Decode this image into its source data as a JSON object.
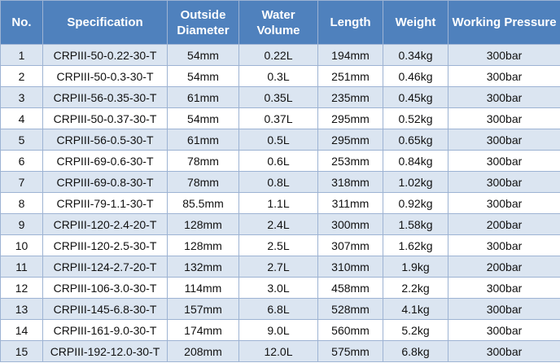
{
  "table": {
    "columns": [
      "No.",
      "Specification",
      "Outside Diameter",
      "Water Volume",
      "Length",
      "Weight",
      "Working Pressure"
    ],
    "rows": [
      [
        "1",
        "CRPIII-50-0.22-30-T",
        "54mm",
        "0.22L",
        "194mm",
        "0.34kg",
        "300bar"
      ],
      [
        "2",
        "CRPIII-50-0.3-30-T",
        "54mm",
        "0.3L",
        "251mm",
        "0.46kg",
        "300bar"
      ],
      [
        "3",
        "CRPIII-56-0.35-30-T",
        "61mm",
        "0.35L",
        "235mm",
        "0.45kg",
        "300bar"
      ],
      [
        "4",
        "CRPIII-50-0.37-30-T",
        "54mm",
        "0.37L",
        "295mm",
        "0.52kg",
        "300bar"
      ],
      [
        "5",
        "CRPIII-56-0.5-30-T",
        "61mm",
        "0.5L",
        "295mm",
        "0.65kg",
        "300bar"
      ],
      [
        "6",
        "CRPIII-69-0.6-30-T",
        "78mm",
        "0.6L",
        "253mm",
        "0.84kg",
        "300bar"
      ],
      [
        "7",
        "CRPIII-69-0.8-30-T",
        "78mm",
        "0.8L",
        "318mm",
        "1.02kg",
        "300bar"
      ],
      [
        "8",
        "CRPIII-79-1.1-30-T",
        "85.5mm",
        "1.1L",
        "311mm",
        "0.92kg",
        "300bar"
      ],
      [
        "9",
        "CRPIII-120-2.4-20-T",
        "128mm",
        "2.4L",
        "300mm",
        "1.58kg",
        "200bar"
      ],
      [
        "10",
        "CRPIII-120-2.5-30-T",
        "128mm",
        "2.5L",
        "307mm",
        "1.62kg",
        "300bar"
      ],
      [
        "11",
        "CRPIII-124-2.7-20-T",
        "132mm",
        "2.7L",
        "310mm",
        "1.9kg",
        "200bar"
      ],
      [
        "12",
        "CRPIII-106-3.0-30-T",
        "114mm",
        "3.0L",
        "458mm",
        "2.2kg",
        "300bar"
      ],
      [
        "13",
        "CRPIII-145-6.8-30-T",
        "157mm",
        "6.8L",
        "528mm",
        "4.1kg",
        "300bar"
      ],
      [
        "14",
        "CRPIII-161-9.0-30-T",
        "174mm",
        "9.0L",
        "560mm",
        "5.2kg",
        "300bar"
      ],
      [
        "15",
        "CRPIII-192-12.0-30-T",
        "208mm",
        "12.0L",
        "575mm",
        "6.8kg",
        "300bar"
      ]
    ]
  }
}
